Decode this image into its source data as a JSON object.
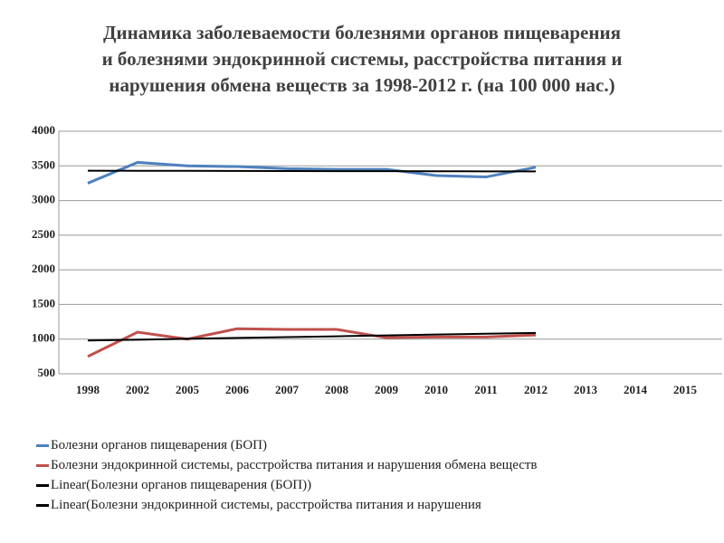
{
  "chart_data": {
    "type": "line",
    "title": [
      "Динамика заболеваемости болезнями органов пищеварения",
      "и болезнями эндокринной системы, расстройства питания и",
      "нарушения обмена веществ за 1998-2012 г. (на 100 000 нас.)"
    ],
    "categories": [
      "1998",
      "2002",
      "2005",
      "2006",
      "2007",
      "2008",
      "2009",
      "2010",
      "2011",
      "2012",
      "2013",
      "2014",
      "2015"
    ],
    "series": [
      {
        "name": "Болезни органов пищеварения (БОП)",
        "color": "#4f81bd",
        "width": 3,
        "values": [
          3250,
          3550,
          3500,
          3490,
          3460,
          3450,
          3450,
          3360,
          3340,
          3480,
          null,
          null,
          null
        ]
      },
      {
        "name": "Болезни эндокринной системы, расстройства питания и нарушения обмена веществ",
        "color": "#c0504d",
        "width": 3,
        "values": [
          750,
          1100,
          1000,
          1150,
          1140,
          1140,
          1020,
          1030,
          1030,
          1060,
          null,
          null,
          null
        ]
      },
      {
        "name": "Linear(Болезни органов пищеварения (БОП))",
        "color": "#000000",
        "width": 2,
        "values": [
          3430,
          3429,
          3428,
          3427,
          3426,
          3424,
          3423,
          3422,
          3421,
          3420,
          null,
          null,
          null
        ]
      },
      {
        "name": "Linear(Болезни эндокринной системы, расстройства питания и нарушения",
        "color": "#000000",
        "width": 2,
        "values": [
          980,
          992,
          1004,
          1017,
          1029,
          1041,
          1053,
          1066,
          1078,
          1090,
          null,
          null,
          null
        ]
      }
    ],
    "ylim": [
      500,
      4000
    ],
    "yticks": [
      500,
      1000,
      1500,
      2000,
      2500,
      3000,
      3500,
      4000
    ],
    "grid": true
  }
}
